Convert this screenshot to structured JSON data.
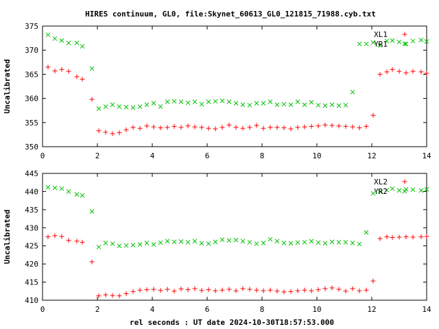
{
  "title": "HIRES continuum, GL0, file:Skynet_60613_GL0_121815_71988.cyb.txt",
  "xlabel": "rel seconds : UT date 2024-10-30T18:57:53.000",
  "colors": {
    "red": "#ff0000",
    "green": "#00c000",
    "axis": "#000000"
  },
  "chart_data": [
    {
      "type": "scatter",
      "ylabel": "Uncalibrated",
      "xlim": [
        0,
        14
      ],
      "ylim": [
        350,
        375
      ],
      "xticks": [
        0,
        2,
        4,
        6,
        8,
        10,
        12,
        14
      ],
      "yticks": [
        350,
        355,
        360,
        365,
        370,
        375
      ],
      "legend_position": "top-right",
      "x": [
        0.2,
        0.45,
        0.7,
        0.95,
        1.25,
        1.45,
        1.8,
        2.05,
        2.3,
        2.55,
        2.8,
        3.05,
        3.3,
        3.55,
        3.8,
        4.05,
        4.3,
        4.55,
        4.8,
        5.05,
        5.3,
        5.55,
        5.8,
        6.05,
        6.3,
        6.55,
        6.8,
        7.05,
        7.3,
        7.55,
        7.8,
        8.05,
        8.3,
        8.55,
        8.8,
        9.05,
        9.3,
        9.55,
        9.8,
        10.05,
        10.3,
        10.55,
        10.8,
        11.05,
        11.3,
        11.55,
        11.8,
        12.05,
        12.3,
        12.55,
        12.75,
        13.0,
        13.25,
        13.5,
        13.8,
        14.0
      ],
      "series": [
        {
          "name": "XL1",
          "color": "#ff0000",
          "marker": "plus",
          "values": [
            366.5,
            365.7,
            366.0,
            365.6,
            364.5,
            364.0,
            359.8,
            353.3,
            353.0,
            352.7,
            352.9,
            353.5,
            354.0,
            353.8,
            354.3,
            354.1,
            353.9,
            354.0,
            354.2,
            354.0,
            354.3,
            354.1,
            354.0,
            353.8,
            353.7,
            354.0,
            354.5,
            354.0,
            353.8,
            354.0,
            354.4,
            353.8,
            354.0,
            354.0,
            353.9,
            353.7,
            354.0,
            354.1,
            354.2,
            354.3,
            354.5,
            354.4,
            354.3,
            354.2,
            354.1,
            353.9,
            354.2,
            356.5,
            365.0,
            365.5,
            366.0,
            365.6,
            365.3,
            365.6,
            365.5,
            365.2
          ]
        },
        {
          "name": "YR1",
          "color": "#00c000",
          "marker": "x",
          "values": [
            373.2,
            372.4,
            372.0,
            371.5,
            371.5,
            370.8,
            366.2,
            357.9,
            358.3,
            358.7,
            358.3,
            358.2,
            358.1,
            358.3,
            358.7,
            359.0,
            358.3,
            359.3,
            359.4,
            359.3,
            359.1,
            359.3,
            358.8,
            359.3,
            359.4,
            359.5,
            359.3,
            359.0,
            358.7,
            358.6,
            359.0,
            359.0,
            359.3,
            358.7,
            358.8,
            358.7,
            359.3,
            358.7,
            359.2,
            358.6,
            358.5,
            358.7,
            358.5,
            358.6,
            361.3,
            371.3,
            371.3,
            371.6,
            371.0,
            371.9,
            372.0,
            371.7,
            371.3,
            371.9,
            372.1,
            371.8
          ]
        }
      ]
    },
    {
      "type": "scatter",
      "ylabel": "Uncalibrated",
      "xlim": [
        0,
        14
      ],
      "ylim": [
        410,
        445
      ],
      "xticks": [
        0,
        2,
        4,
        6,
        8,
        10,
        12,
        14
      ],
      "yticks": [
        410,
        415,
        420,
        425,
        430,
        435,
        440,
        445
      ],
      "legend_position": "top-right",
      "x": [
        0.2,
        0.45,
        0.7,
        0.95,
        1.25,
        1.45,
        1.8,
        2.05,
        2.3,
        2.55,
        2.8,
        3.05,
        3.3,
        3.55,
        3.8,
        4.05,
        4.3,
        4.55,
        4.8,
        5.05,
        5.3,
        5.55,
        5.8,
        6.05,
        6.3,
        6.55,
        6.8,
        7.05,
        7.3,
        7.55,
        7.8,
        8.05,
        8.3,
        8.55,
        8.8,
        9.05,
        9.3,
        9.55,
        9.8,
        10.05,
        10.3,
        10.55,
        10.8,
        11.05,
        11.3,
        11.55,
        11.8,
        12.05,
        12.3,
        12.55,
        12.75,
        13.0,
        13.25,
        13.5,
        13.8,
        14.0
      ],
      "series": [
        {
          "name": "XL2",
          "color": "#ff0000",
          "marker": "plus",
          "values": [
            427.5,
            427.8,
            427.6,
            426.5,
            426.3,
            426.0,
            420.6,
            411.2,
            411.5,
            411.3,
            411.2,
            411.8,
            412.4,
            412.8,
            412.9,
            413.0,
            412.7,
            413.0,
            412.5,
            413.1,
            412.9,
            413.2,
            412.7,
            412.9,
            412.6,
            412.8,
            413.0,
            412.6,
            413.2,
            413.0,
            412.8,
            412.6,
            412.8,
            412.5,
            412.3,
            412.4,
            412.6,
            412.8,
            412.6,
            412.9,
            413.2,
            413.4,
            413.0,
            412.5,
            413.2,
            412.6,
            412.8,
            415.3,
            427.0,
            427.5,
            427.3,
            427.4,
            427.5,
            427.4,
            427.5,
            427.6
          ]
        },
        {
          "name": "YR2",
          "color": "#00c000",
          "marker": "x",
          "values": [
            441.2,
            441.0,
            440.8,
            440.0,
            439.2,
            438.9,
            434.5,
            424.7,
            425.8,
            425.6,
            425.0,
            425.1,
            425.2,
            425.4,
            425.8,
            425.4,
            425.9,
            426.3,
            426.1,
            426.2,
            426.0,
            426.3,
            425.7,
            425.6,
            426.1,
            426.7,
            426.5,
            426.6,
            426.3,
            426.0,
            425.6,
            425.8,
            426.8,
            426.3,
            425.8,
            425.7,
            425.9,
            426.0,
            426.3,
            425.9,
            425.7,
            426.1,
            426.0,
            426.0,
            425.8,
            425.5,
            428.7,
            439.5,
            440.0,
            440.4,
            440.8,
            440.3,
            440.6,
            440.5,
            440.3,
            440.6
          ]
        }
      ]
    }
  ]
}
